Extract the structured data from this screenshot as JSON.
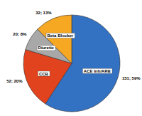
{
  "chart_data": {
    "type": "pie",
    "categories": [
      "ACE Inh/ARB",
      "CCB",
      "Diuretic",
      "Beta Blocker"
    ],
    "values": [
      151,
      52,
      20,
      32
    ],
    "value_labels": [
      "151; 59%",
      "52; 20%",
      "20; 8%",
      "32; 13%"
    ],
    "colors": [
      "#3371c2",
      "#e2431f",
      "#a8a8a8",
      "#f6a823"
    ],
    "data_labels": true
  }
}
